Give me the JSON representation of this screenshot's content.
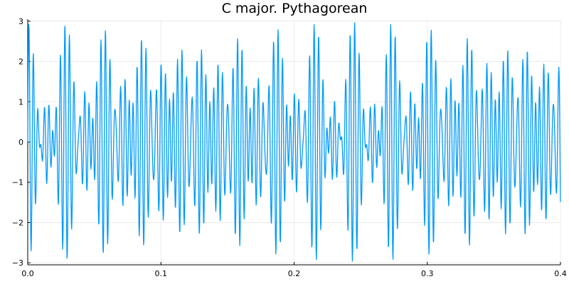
{
  "chart_data": {
    "type": "line",
    "title": "C major. Pythagorean",
    "xlabel": "",
    "ylabel": "",
    "xlim": [
      0,
      0.4
    ],
    "ylim": [
      -3.05,
      3.05
    ],
    "x_ticks": [
      0.0,
      0.1,
      0.2,
      0.3,
      0.4
    ],
    "x_tick_labels": [
      "0.0",
      "0.1",
      "0.2",
      "0.3",
      "0.4"
    ],
    "y_ticks": [
      -3,
      -2,
      -1,
      0,
      1,
      2,
      3
    ],
    "y_tick_labels": [
      "−3",
      "−2",
      "−1",
      "0",
      "1",
      "2",
      "3"
    ],
    "grid": true,
    "legend": "none",
    "series": [
      {
        "color": "#009af9",
        "signal": {
          "kind": "sum-of-sines",
          "components": [
            {
              "frequency": 261.63,
              "amplitude": 1
            },
            {
              "frequency": 294.33,
              "amplitude": 1
            },
            {
              "frequency": 331.12,
              "amplitude": 1
            }
          ],
          "x_start": 0,
          "x_end": 0.4,
          "samples": 1600
        }
      }
    ]
  }
}
